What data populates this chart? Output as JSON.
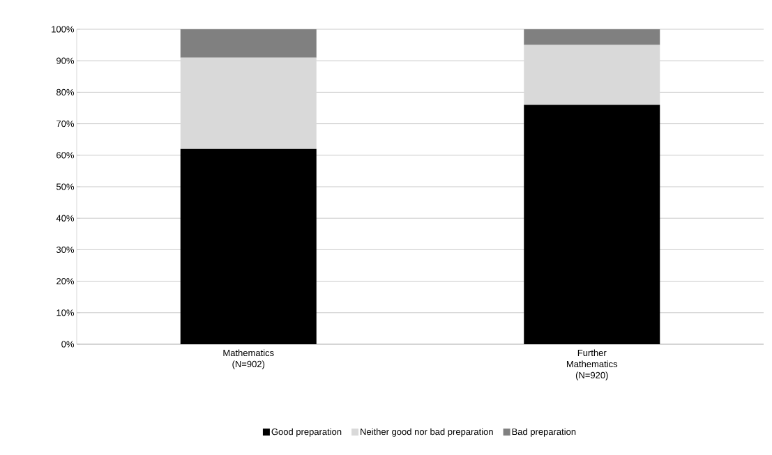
{
  "chart_data": {
    "type": "bar",
    "stacked": true,
    "categories": [
      "Mathematics (N=902)",
      "Further Mathematics (N=920)"
    ],
    "series": [
      {
        "name": "Good preparation",
        "color": "#000000",
        "values": [
          62,
          76
        ]
      },
      {
        "name": "Neither good nor bad preparation",
        "color": "#d9d9d9",
        "values": [
          29,
          19
        ]
      },
      {
        "name": "Bad preparation",
        "color": "#808080",
        "values": [
          9,
          5
        ]
      }
    ],
    "ylim": [
      0,
      100
    ],
    "yticks": [
      {
        "value": 0,
        "label": "0%"
      },
      {
        "value": 10,
        "label": "10%"
      },
      {
        "value": 20,
        "label": "20%"
      },
      {
        "value": 30,
        "label": "30%"
      },
      {
        "value": 40,
        "label": "40%"
      },
      {
        "value": 50,
        "label": "50%"
      },
      {
        "value": 60,
        "label": "60%"
      },
      {
        "value": 70,
        "label": "70%"
      },
      {
        "value": 80,
        "label": "80%"
      },
      {
        "value": 90,
        "label": "90%"
      },
      {
        "value": 100,
        "label": "100%"
      }
    ],
    "grid": "y",
    "legend": "bottom"
  }
}
